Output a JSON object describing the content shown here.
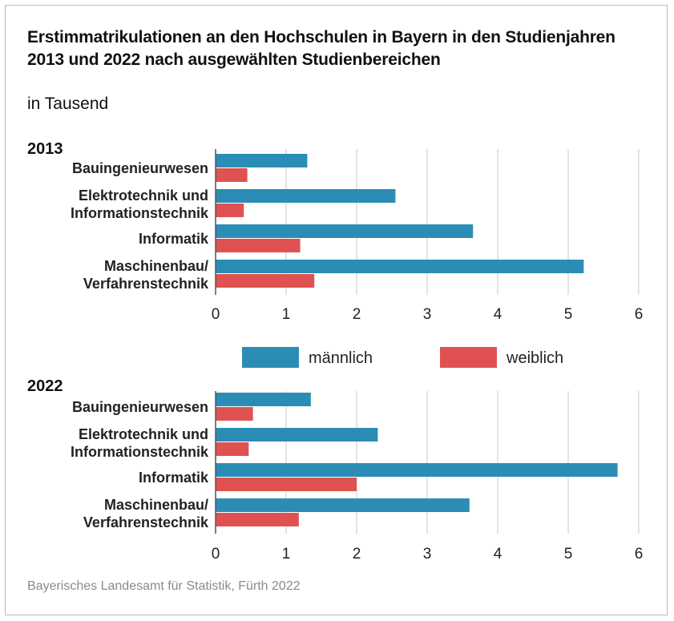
{
  "title": "Erstimmatrikulationen an den Hochschulen in Bayern in den Studienjahren 2013 und 2022 nach ausgewählten Studienbereichen",
  "subtitle": "in Tausend",
  "source": "Bayerisches Landesamt für Statistik, Fürth 2022",
  "colors": {
    "maennlich": "#2b8db5",
    "weiblich": "#e05252",
    "grid": "#c8c8c8"
  },
  "legend": [
    {
      "name": "männlich",
      "color": "#2b8db5"
    },
    {
      "name": "weiblich",
      "color": "#e05252"
    }
  ],
  "chart_data": [
    {
      "type": "bar",
      "orientation": "horizontal",
      "title": "2013",
      "categories": [
        [
          "Bauingenieurwesen"
        ],
        [
          "Elektrotechnik und",
          "Informationstechnik"
        ],
        [
          "Informatik"
        ],
        [
          "Maschinenbau/",
          "Verfahrenstechnik"
        ]
      ],
      "series": [
        {
          "name": "männlich",
          "values": [
            1.3,
            2.55,
            3.65,
            5.22
          ]
        },
        {
          "name": "weiblich",
          "values": [
            0.45,
            0.4,
            1.2,
            1.4
          ]
        }
      ],
      "xlim": [
        0,
        6
      ],
      "xticks": [
        0,
        1,
        2,
        3,
        4,
        5,
        6
      ],
      "grid": true
    },
    {
      "type": "bar",
      "orientation": "horizontal",
      "title": "2022",
      "categories": [
        [
          "Bauingenieurwesen"
        ],
        [
          "Elektrotechnik und",
          "Informationstechnik"
        ],
        [
          "Informatik"
        ],
        [
          "Maschinenbau/",
          "Verfahrenstechnik"
        ]
      ],
      "series": [
        {
          "name": "männlich",
          "values": [
            1.35,
            2.3,
            5.7,
            3.6
          ]
        },
        {
          "name": "weiblich",
          "values": [
            0.53,
            0.47,
            2.0,
            1.18
          ]
        }
      ],
      "xlim": [
        0,
        6
      ],
      "xticks": [
        0,
        1,
        2,
        3,
        4,
        5,
        6
      ],
      "grid": true
    }
  ]
}
